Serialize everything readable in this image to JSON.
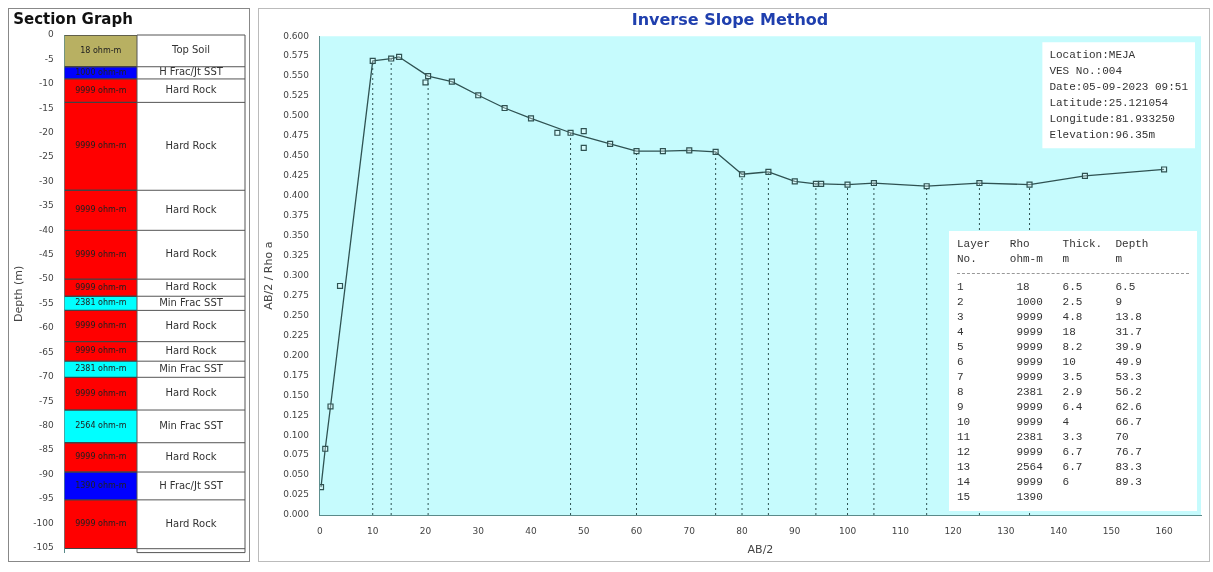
{
  "chart_data": [
    {
      "type": "bar",
      "title": "Section Graph",
      "ylabel": "Depth (m)",
      "categories": [
        null
      ],
      "stacked": true,
      "tick_labels": "y",
      "ylim": [
        -106,
        0
      ],
      "yticks": [
        0,
        -5,
        -10,
        -15,
        -20,
        -25,
        -30,
        -35,
        -40,
        -45,
        -50,
        -55,
        -60,
        -65,
        -70,
        -75,
        -80,
        -85,
        -90,
        -95,
        -100,
        -105
      ],
      "legend": false,
      "series": [
        {
          "name": "Top Soil",
          "color": "#b8b062",
          "values": [
            -6.5
          ]
        },
        {
          "name": "H Frac/Jt SST",
          "color": "#0000ff",
          "values": [
            -2.5
          ]
        },
        {
          "name": "Hard Rock",
          "color": "#ff0000",
          "values": [
            -4.8
          ]
        },
        {
          "name": "Hard Rock",
          "color": "#ff0000",
          "values": [
            -18
          ]
        },
        {
          "name": "Hard Rock",
          "color": "#ff0000",
          "values": [
            -8.2
          ]
        },
        {
          "name": "Hard Rock",
          "color": "#ff0000",
          "values": [
            -10
          ]
        },
        {
          "name": "Hard Rock",
          "color": "#ff0000",
          "values": [
            -3.5
          ]
        },
        {
          "name": "Min Frac SST",
          "color": "#00ffff",
          "values": [
            -2.9
          ]
        },
        {
          "name": "Hard Rock",
          "color": "#ff0000",
          "values": [
            -6.4
          ]
        },
        {
          "name": "Hard Rock",
          "color": "#ff0000",
          "values": [
            -4
          ]
        },
        {
          "name": "Min Frac SST",
          "color": "#00ffff",
          "values": [
            -3.3
          ]
        },
        {
          "name": "Hard Rock",
          "color": "#ff0000",
          "values": [
            -6.7
          ]
        },
        {
          "name": "Min Frac SST",
          "color": "#00ffff",
          "values": [
            -6.7
          ]
        },
        {
          "name": "Hard Rock",
          "color": "#ff0000",
          "values": [
            -6
          ]
        },
        {
          "name": "H Frac/Jt SST",
          "color": "#0000ff",
          "values": [
            -5.7
          ]
        },
        {
          "name": "Hard Rock",
          "color": "#ff0000",
          "values": [
            -10
          ]
        }
      ],
      "annotations": [
        "18 ohm-m",
        "1000 ohm-m",
        "9999 ohm-m",
        "9999 ohm-m",
        "9999 ohm-m",
        "9999 ohm-m",
        "9999 ohm-m",
        "2381 ohm-m",
        "9999 ohm-m",
        "9999 ohm-m",
        "2381 ohm-m",
        "9999 ohm-m",
        "2564 ohm-m",
        "9999 ohm-m",
        "1390 ohm-m",
        "9999 ohm-m"
      ]
    },
    {
      "type": "line",
      "title": "Inverse Slope Method",
      "xlabel": "AB/2",
      "ylabel": "AB/2 / Rho a",
      "xlim": [
        0,
        167
      ],
      "xticks": [
        0,
        10,
        20,
        30,
        40,
        50,
        60,
        70,
        80,
        90,
        100,
        110,
        120,
        130,
        140,
        150,
        160
      ],
      "ylim": [
        0,
        0.6
      ],
      "yticks": [
        {
          "value": 0,
          "label": "0.000"
        },
        {
          "value": 0.025,
          "label": "0.025"
        },
        {
          "value": 0.05,
          "label": "0.050"
        },
        {
          "value": 0.075,
          "label": "0.075"
        },
        {
          "value": 0.1,
          "label": "0.100"
        },
        {
          "value": 0.125,
          "label": "0.125"
        },
        {
          "value": 0.15,
          "label": "0.150"
        },
        {
          "value": 0.175,
          "label": "0.175"
        },
        {
          "value": 0.2,
          "label": "0.200"
        },
        {
          "value": 0.225,
          "label": "0.225"
        },
        {
          "value": 0.25,
          "label": "0.250"
        },
        {
          "value": 0.275,
          "label": "0.275"
        },
        {
          "value": 0.3,
          "label": "0.300"
        },
        {
          "value": 0.325,
          "label": "0.325"
        },
        {
          "value": 0.35,
          "label": "0.350"
        },
        {
          "value": 0.375,
          "label": "0.375"
        },
        {
          "value": 0.4,
          "label": "0.400"
        },
        {
          "value": 0.425,
          "label": "0.425"
        },
        {
          "value": 0.45,
          "label": "0.450"
        },
        {
          "value": 0.475,
          "label": "0.475"
        },
        {
          "value": 0.5,
          "label": "0.500"
        },
        {
          "value": 0.525,
          "label": "0.525"
        },
        {
          "value": 0.55,
          "label": "0.550"
        },
        {
          "value": 0.575,
          "label": "0.575"
        },
        {
          "value": 0.6,
          "label": "0.600"
        }
      ],
      "grid": false,
      "legend": false,
      "marker": "square",
      "line_style": "solid",
      "series": [
        {
          "type": "line",
          "color": "#2f5252",
          "x": [
            0.2,
            1,
            2,
            10,
            13.5,
            15,
            20.5,
            25,
            30,
            35,
            40,
            47.5,
            55,
            60,
            65,
            70,
            75,
            80,
            85,
            90,
            94,
            95,
            100,
            105,
            115,
            125,
            134.5,
            145,
            160
          ],
          "values": [
            0.035,
            0.083,
            0.136,
            0.569,
            0.572,
            0.574,
            0.55,
            0.543,
            0.526,
            0.51,
            0.497,
            0.479,
            0.465,
            0.456,
            0.456,
            0.457,
            0.455,
            0.427,
            0.43,
            0.418,
            0.415,
            0.415,
            0.414,
            0.416,
            0.412,
            0.416,
            0.414,
            0.425,
            0.433
          ]
        },
        {
          "type": "scatter",
          "color": "#2f5252",
          "x": [
            3.8,
            20,
            45,
            50,
            50
          ],
          "values": [
            0.287,
            0.542,
            0.479,
            0.481,
            0.46
          ]
        }
      ],
      "ref_lines": [
        {
          "axis": "x",
          "value": 10,
          "line_style": "dotted",
          "color": "#2f5252"
        },
        {
          "axis": "x",
          "value": 13.5,
          "line_style": "dotted",
          "color": "#2f5252"
        },
        {
          "axis": "x",
          "value": 20.5,
          "line_style": "dotted",
          "color": "#2f5252"
        },
        {
          "axis": "x",
          "value": 47.5,
          "line_style": "dotted",
          "color": "#2f5252"
        },
        {
          "axis": "x",
          "value": 60,
          "line_style": "dotted",
          "color": "#2f5252"
        },
        {
          "axis": "x",
          "value": 75,
          "line_style": "dotted",
          "color": "#2f5252"
        },
        {
          "axis": "x",
          "value": 80,
          "line_style": "dotted",
          "color": "#2f5252"
        },
        {
          "axis": "x",
          "value": 85,
          "line_style": "dotted",
          "color": "#2f5252"
        },
        {
          "axis": "x",
          "value": 94,
          "line_style": "dotted",
          "color": "#2f5252"
        },
        {
          "axis": "x",
          "value": 100,
          "line_style": "dotted",
          "color": "#2f5252"
        },
        {
          "axis": "x",
          "value": 105,
          "line_style": "dotted",
          "color": "#2f5252"
        },
        {
          "axis": "x",
          "value": 115,
          "line_style": "dotted",
          "color": "#2f5252"
        },
        {
          "axis": "x",
          "value": 125,
          "line_style": "dotted",
          "color": "#2f5252"
        },
        {
          "axis": "x",
          "value": 134.5,
          "line_style": "dotted",
          "color": "#2f5252"
        }
      ],
      "annotations": [
        "Location:MEJA",
        "VES No.:004",
        "Date:05-09-2023 09:51",
        "Latitude:25.121054",
        "Longitude:81.933250",
        "Elevation:96.35m"
      ]
    },
    {
      "type": "other",
      "annotations": [
        "Layer   Rho     Thick.  Depth",
        "No.     ohm-m   m       m",
        "1        18     6.5     6.5",
        "2        1000   2.5     9",
        "3        9999   4.8     13.8",
        "4        9999   18      31.7",
        "5        9999   8.2     39.9",
        "6        9999   10      49.9",
        "7        9999   3.5     53.3",
        "8        2381   2.9     56.2",
        "9        9999   6.4     62.6",
        "10       9999   4       66.7",
        "11       2381   3.3     70",
        "12       9999   6.7     76.7",
        "13       2564   6.7     83.3",
        "14       9999   6       89.3",
        "15       1390"
      ]
    }
  ]
}
